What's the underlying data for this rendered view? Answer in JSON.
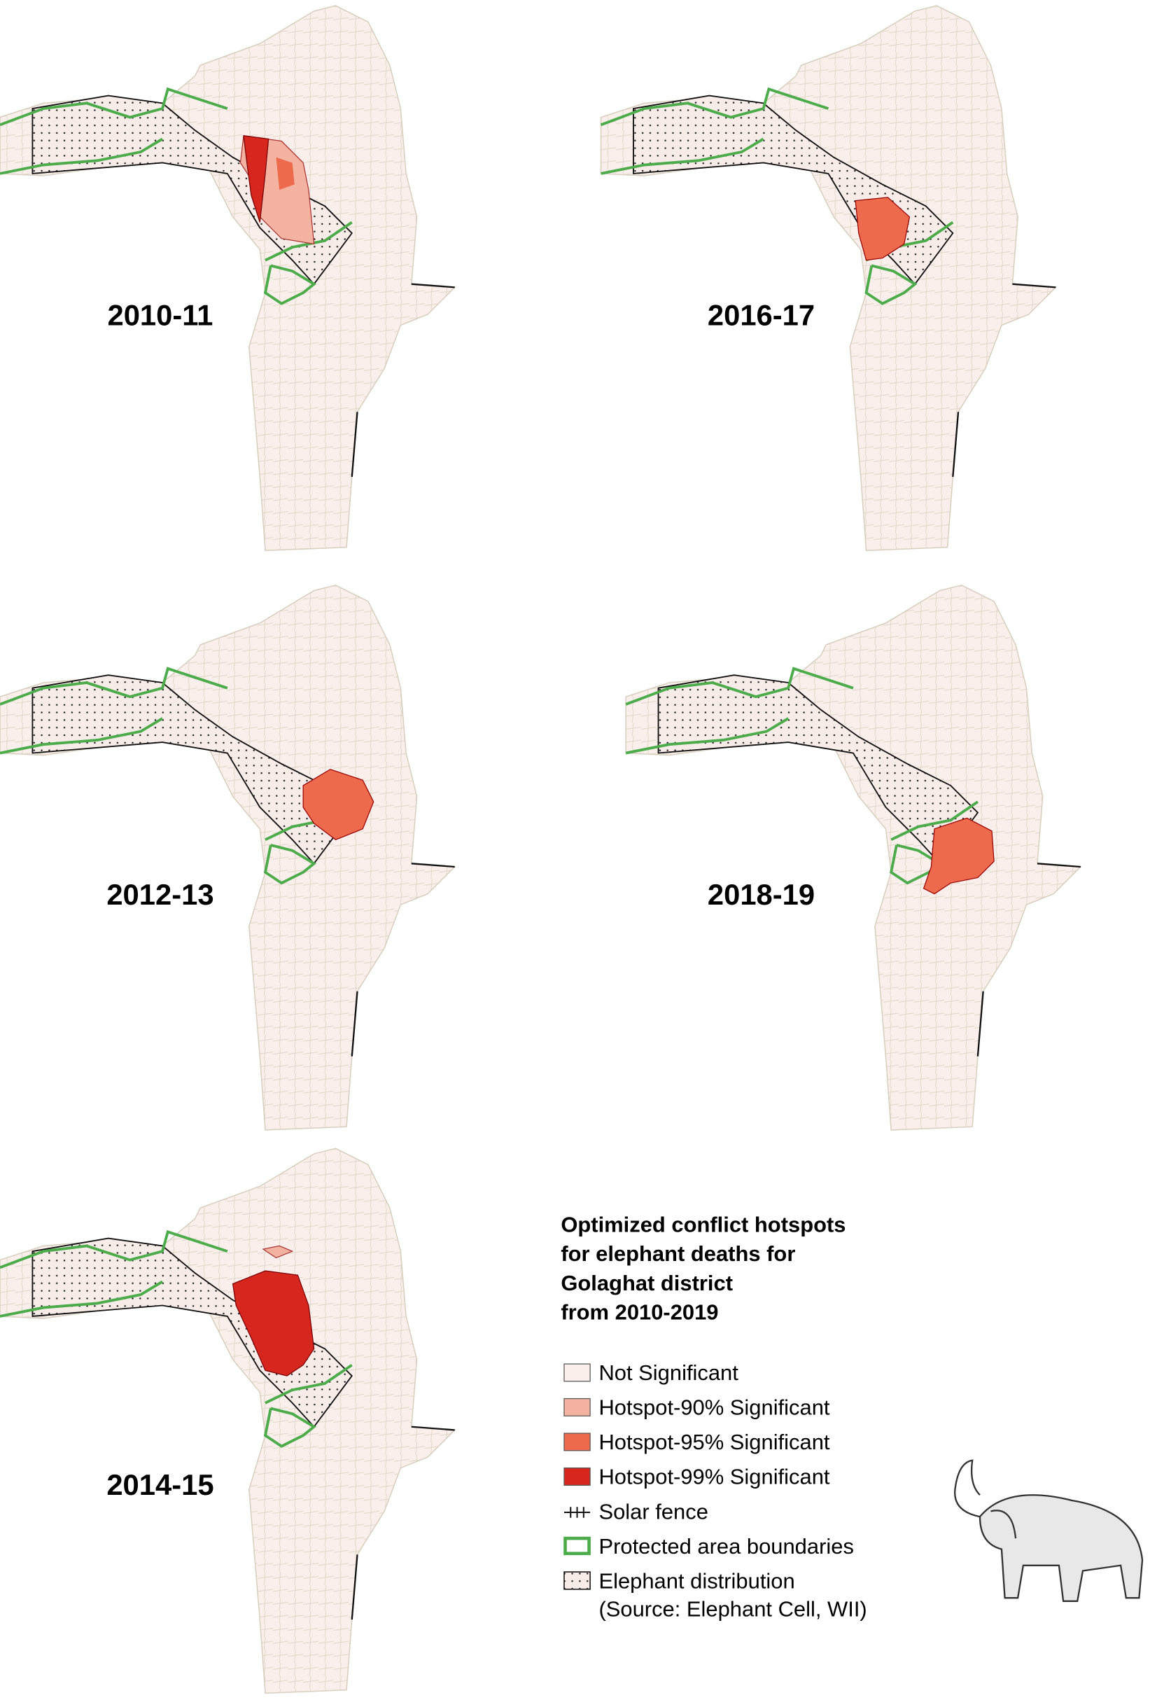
{
  "panels": [
    {
      "label": "2010-11"
    },
    {
      "label": "2016-17"
    },
    {
      "label": "2012-13"
    },
    {
      "label": "2018-19"
    },
    {
      "label": "2014-15"
    }
  ],
  "legend": {
    "title_lines": [
      "Optimized conflict hotspots",
      "for elephant deaths for",
      "Golaghat district",
      "from 2010-2019"
    ],
    "items": [
      {
        "label": "Not Significant"
      },
      {
        "label": "Hotspot-90% Significant"
      },
      {
        "label": "Hotspot-95% Significant"
      },
      {
        "label": "Hotspot-99% Significant"
      },
      {
        "label": "Solar fence"
      },
      {
        "label": "Protected area boundaries"
      },
      {
        "label": "Elephant distribution"
      }
    ],
    "source": "(Source: Elephant Cell, WII)"
  }
}
